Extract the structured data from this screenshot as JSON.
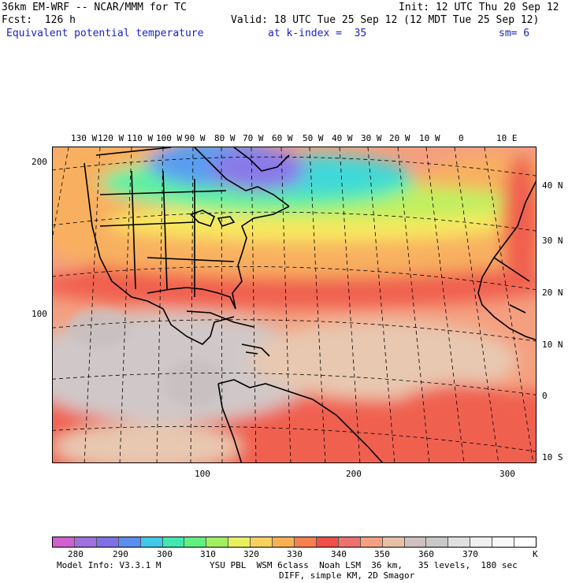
{
  "header": {
    "line1_left": "36km EM-WRF -- NCAR/MMM for TC",
    "line1_right": "Init: 12 UTC Thu 20 Sep 12",
    "line2_left": "Fcst:  126 h",
    "line2_right": "Valid: 18 UTC Tue 25 Sep 12 (12 MDT Tue 25 Sep 12)",
    "field_name": "Equivalent potential temperature",
    "level": "at k-index =  35",
    "smoothing": "sm= 6"
  },
  "map": {
    "top_lon_labels": [
      "130 W",
      "120 W",
      "110 W",
      "100 W",
      "90 W",
      "80 W",
      "70 W",
      "60 W",
      "50 W",
      "40 W",
      "30 W",
      "20 W",
      "10 W",
      "0",
      "10 E"
    ],
    "right_lat_labels": [
      "40 N",
      "30 N",
      "20 N",
      "10 N",
      "0",
      "10 S"
    ],
    "left_grid_labels": [
      "200",
      "100"
    ],
    "bottom_grid_labels": [
      "100",
      "200",
      "300"
    ],
    "colors": {
      "cold_purple": "#8a7ae8",
      "blue": "#5a9ef0",
      "cyan": "#40d8d8",
      "green": "#60f0a0",
      "lime": "#c0f060",
      "yellow": "#f8e860",
      "orange": "#f8b060",
      "red": "#f06050",
      "salmon": "#f4a080",
      "tan": "#e8c8b0",
      "gray": "#c8c0c0"
    }
  },
  "colorbar": {
    "colors": [
      "#d060d0",
      "#a070e0",
      "#8070e8",
      "#5a8ef0",
      "#40c8e8",
      "#40e8b0",
      "#60f080",
      "#a0f060",
      "#e8f060",
      "#f8d060",
      "#f8b050",
      "#f88050",
      "#f05048",
      "#f07070",
      "#f4a080",
      "#e8c0a8",
      "#d0c0c0",
      "#c8c8c8",
      "#e0e0e0",
      "#f0f0f0",
      "#f8f8f8",
      "#ffffff"
    ],
    "labels": [
      "280",
      "290",
      "300",
      "310",
      "320",
      "330",
      "340",
      "350",
      "360",
      "370"
    ],
    "units": "K"
  },
  "footer": {
    "line1_left": "Model Info: V3.3.1 M",
    "line1_right": "YSU PBL  WSM 6class  Noah LSM  36 km,   35 levels,  180 sec",
    "line2": "DIFF, simple KM, 2D Smagor"
  }
}
